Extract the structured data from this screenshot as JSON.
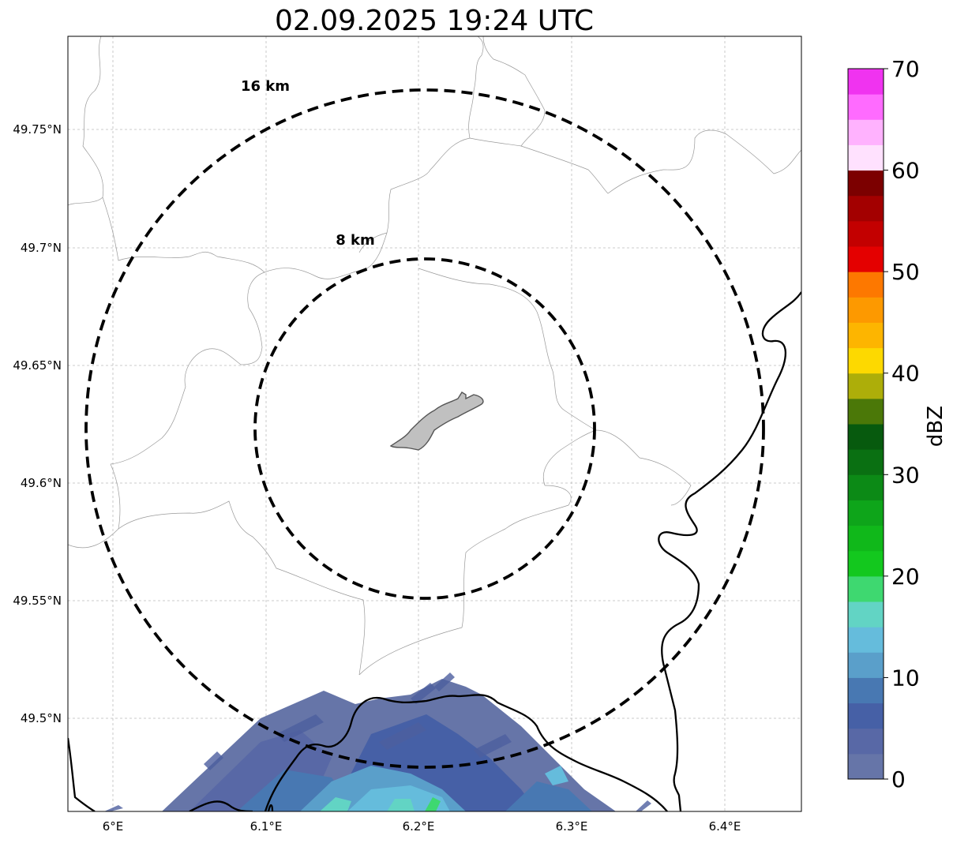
{
  "title": "02.09.2025 19:24 UTC",
  "map": {
    "x_ticks": [
      "6°E",
      "6.1°E",
      "6.2°E",
      "6.3°E",
      "6.4°E"
    ],
    "y_ticks": [
      "49.75°N",
      "49.7°N",
      "49.65°N",
      "49.6°N",
      "49.55°N",
      "49.5°N"
    ],
    "rings": [
      {
        "label": "16 km",
        "radius_km": 16
      },
      {
        "label": "8 km",
        "radius_km": 8
      }
    ],
    "grid": true,
    "border_color": "#000000",
    "boundary_color": "#999999",
    "city_fill": "#c0c0c0"
  },
  "colorbar": {
    "label": "dBZ",
    "tick_labels": [
      "0",
      "10",
      "20",
      "30",
      "40",
      "50",
      "60",
      "70"
    ],
    "range": [
      0,
      70
    ],
    "colors": [
      "#6675a8",
      "#5868a6",
      "#4660a6",
      "#4878b2",
      "#5a9fca",
      "#65bcdc",
      "#62d4c4",
      "#3ed870",
      "#13c81e",
      "#10b81a",
      "#0ea51a",
      "#0c8a16",
      "#0a7012",
      "#075a0e",
      "#4b7808",
      "#adae09",
      "#fdd900",
      "#fdb500",
      "#fd9900",
      "#fd7800",
      "#e40000",
      "#c30000",
      "#a30000",
      "#7c0000",
      "#ffe1fe",
      "#ffb2fe",
      "#ff6bff",
      "#f033f0"
    ]
  },
  "chart_data": {
    "type": "heatmap",
    "title": "02.09.2025 19:24 UTC",
    "x_range_deg_E": [
      5.97,
      6.45
    ],
    "y_range_deg_N": [
      49.46,
      49.79
    ],
    "value_label": "dBZ",
    "value_range": [
      0,
      70
    ],
    "echoes_region": "bottom centre, latitudes below ~49.52°N, longitudes ~6.05–6.35°E",
    "echo_values_dbz": [
      0,
      20
    ]
  }
}
